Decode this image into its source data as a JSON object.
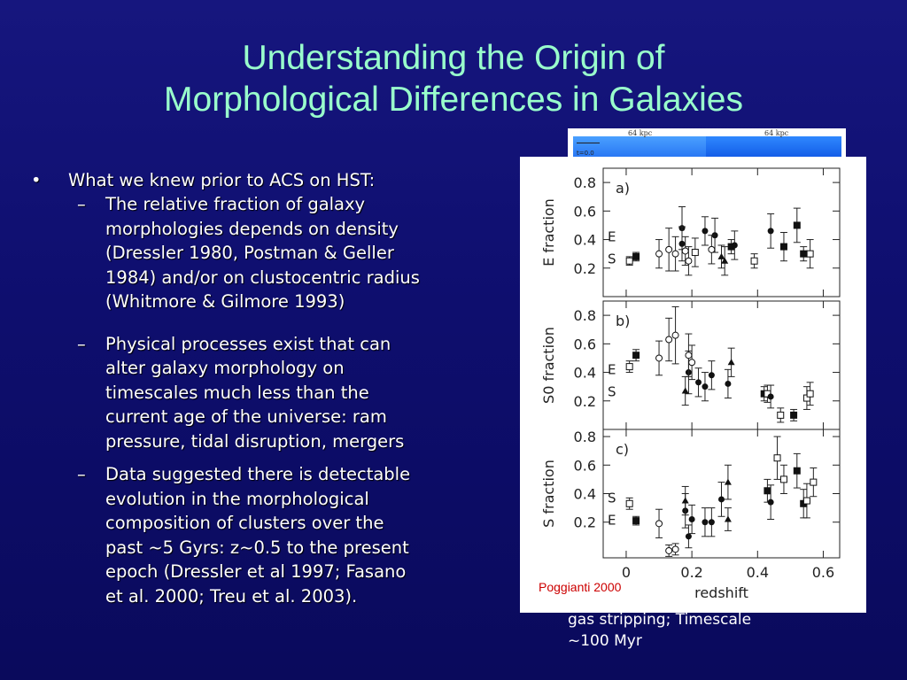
{
  "slide": {
    "title_lines": [
      "Understanding the Origin of",
      "Morphological Differences in Galaxies"
    ],
    "bullet": "What we knew prior to ACS on HST:",
    "subbullets": [
      [
        "The relative fraction of galaxy",
        "morphologies depends on density",
        "(Dressler 1980, Postman & Geller",
        "1984) and/or on clustocentric radius",
        "(Whitmore & Gilmore 1993)"
      ],
      [
        "Physical processes exist that can",
        "alter galaxy morphology on",
        "timescales much less than the",
        "current age of the universe: ram",
        "pressure, tidal disruption, mergers"
      ],
      [
        "Data suggested there is detectable",
        "evolution in the morphological",
        "composition of clusters over the",
        "past ~5 Gyrs: z~0.5 to the present",
        "epoch (Dressler et al 1997; Fasano",
        "et al. 2000; Treu et al. 2003)."
      ]
    ],
    "bullet_symbol": "•",
    "dash_symbol": "–",
    "sim_labels": [
      "64 kpc",
      "64 kpc"
    ],
    "sim_time": "t=0.0",
    "under_text": [
      "gas stripping;  Timescale",
      "~100 Myr"
    ],
    "credit": "Poggianti 2000"
  },
  "chart_data": [
    {
      "type": "scatter",
      "panel_label": "a)",
      "ylabel": "E fraction",
      "ylim": [
        0,
        0.9
      ],
      "yticks": [
        "0.8",
        "0.6",
        "0.4",
        "0.2"
      ],
      "side_labels": [
        "E",
        "S"
      ],
      "series": [
        {
          "marker": "filled-square",
          "points": [
            [
              0.03,
              0.28,
              0.03
            ],
            [
              0.32,
              0.35,
              0.05
            ],
            [
              0.48,
              0.35,
              0.1
            ],
            [
              0.52,
              0.5,
              0.12
            ],
            [
              0.54,
              0.3,
              0.05
            ]
          ]
        },
        {
          "marker": "open-square",
          "points": [
            [
              0.01,
              0.25,
              0.03
            ],
            [
              0.21,
              0.31,
              0.1
            ],
            [
              0.39,
              0.25,
              0.05
            ],
            [
              0.56,
              0.3,
              0.1
            ]
          ]
        },
        {
          "marker": "filled-circle",
          "points": [
            [
              0.17,
              0.48,
              0.15
            ],
            [
              0.17,
              0.37,
              0.12
            ],
            [
              0.24,
              0.46,
              0.1
            ],
            [
              0.27,
              0.43,
              0.12
            ],
            [
              0.33,
              0.36,
              0.1
            ],
            [
              0.44,
              0.46,
              0.12
            ]
          ]
        },
        {
          "marker": "open-circle",
          "points": [
            [
              0.1,
              0.3,
              0.1
            ],
            [
              0.13,
              0.33,
              0.15
            ],
            [
              0.15,
              0.3,
              0.12
            ],
            [
              0.18,
              0.32,
              0.1
            ],
            [
              0.19,
              0.25,
              0.1
            ],
            [
              0.26,
              0.33,
              0.1
            ]
          ]
        },
        {
          "marker": "triangle",
          "points": [
            [
              0.29,
              0.28,
              0.08
            ],
            [
              0.3,
              0.25,
              0.1
            ]
          ]
        }
      ]
    },
    {
      "type": "scatter",
      "panel_label": "b)",
      "ylabel": "S0 fraction",
      "ylim": [
        0,
        0.9
      ],
      "yticks": [
        "0.8",
        "0.6",
        "0.4",
        "0.2"
      ],
      "side_labels": [
        "E",
        "S"
      ],
      "series": [
        {
          "marker": "filled-square",
          "points": [
            [
              0.03,
              0.52,
              0.04
            ],
            [
              0.42,
              0.25,
              0.05
            ],
            [
              0.51,
              0.1,
              0.04
            ]
          ]
        },
        {
          "marker": "open-square",
          "points": [
            [
              0.01,
              0.44,
              0.04
            ],
            [
              0.43,
              0.25,
              0.06
            ],
            [
              0.47,
              0.1,
              0.05
            ],
            [
              0.55,
              0.22,
              0.08
            ],
            [
              0.56,
              0.25,
              0.08
            ]
          ]
        },
        {
          "marker": "filled-circle",
          "points": [
            [
              0.19,
              0.4,
              0.15
            ],
            [
              0.22,
              0.33,
              0.1
            ],
            [
              0.24,
              0.3,
              0.1
            ],
            [
              0.26,
              0.38,
              0.1
            ],
            [
              0.31,
              0.32,
              0.1
            ],
            [
              0.44,
              0.23,
              0.08
            ]
          ]
        },
        {
          "marker": "open-circle",
          "points": [
            [
              0.1,
              0.5,
              0.12
            ],
            [
              0.13,
              0.63,
              0.15
            ],
            [
              0.15,
              0.66,
              0.2
            ],
            [
              0.19,
              0.52,
              0.15
            ],
            [
              0.2,
              0.47,
              0.12
            ]
          ]
        },
        {
          "marker": "triangle",
          "points": [
            [
              0.18,
              0.27,
              0.1
            ],
            [
              0.32,
              0.47,
              0.1
            ]
          ]
        }
      ]
    },
    {
      "type": "scatter",
      "panel_label": "c)",
      "ylabel": "S fraction",
      "xlabel": "redshift",
      "xlim": [
        -0.07,
        0.65
      ],
      "xticks": [
        "0",
        "0.2",
        "0.4",
        "0.6"
      ],
      "ylim": [
        -0.05,
        0.85
      ],
      "yticks": [
        "0.8",
        "0.6",
        "0.4",
        "0.2"
      ],
      "side_labels": [
        "S",
        "E"
      ],
      "series": [
        {
          "marker": "filled-square",
          "points": [
            [
              0.03,
              0.21,
              0.03
            ],
            [
              0.43,
              0.42,
              0.08
            ],
            [
              0.52,
              0.56,
              0.12
            ],
            [
              0.54,
              0.33,
              0.1
            ]
          ]
        },
        {
          "marker": "open-square",
          "points": [
            [
              0.01,
              0.33,
              0.04
            ],
            [
              0.46,
              0.65,
              0.15
            ],
            [
              0.48,
              0.5,
              0.1
            ],
            [
              0.55,
              0.35,
              0.12
            ],
            [
              0.57,
              0.48,
              0.1
            ]
          ]
        },
        {
          "marker": "filled-circle",
          "points": [
            [
              0.18,
              0.28,
              0.12
            ],
            [
              0.19,
              0.1,
              0.08
            ],
            [
              0.2,
              0.22,
              0.1
            ],
            [
              0.24,
              0.2,
              0.1
            ],
            [
              0.26,
              0.2,
              0.1
            ],
            [
              0.29,
              0.36,
              0.12
            ],
            [
              0.44,
              0.34,
              0.12
            ]
          ]
        },
        {
          "marker": "open-circle",
          "points": [
            [
              0.1,
              0.19,
              0.1
            ],
            [
              0.13,
              0.0,
              0.04
            ],
            [
              0.15,
              0.01,
              0.04
            ]
          ]
        },
        {
          "marker": "triangle",
          "points": [
            [
              0.18,
              0.35,
              0.1
            ],
            [
              0.31,
              0.48,
              0.12
            ],
            [
              0.31,
              0.22,
              0.08
            ]
          ]
        }
      ]
    }
  ]
}
